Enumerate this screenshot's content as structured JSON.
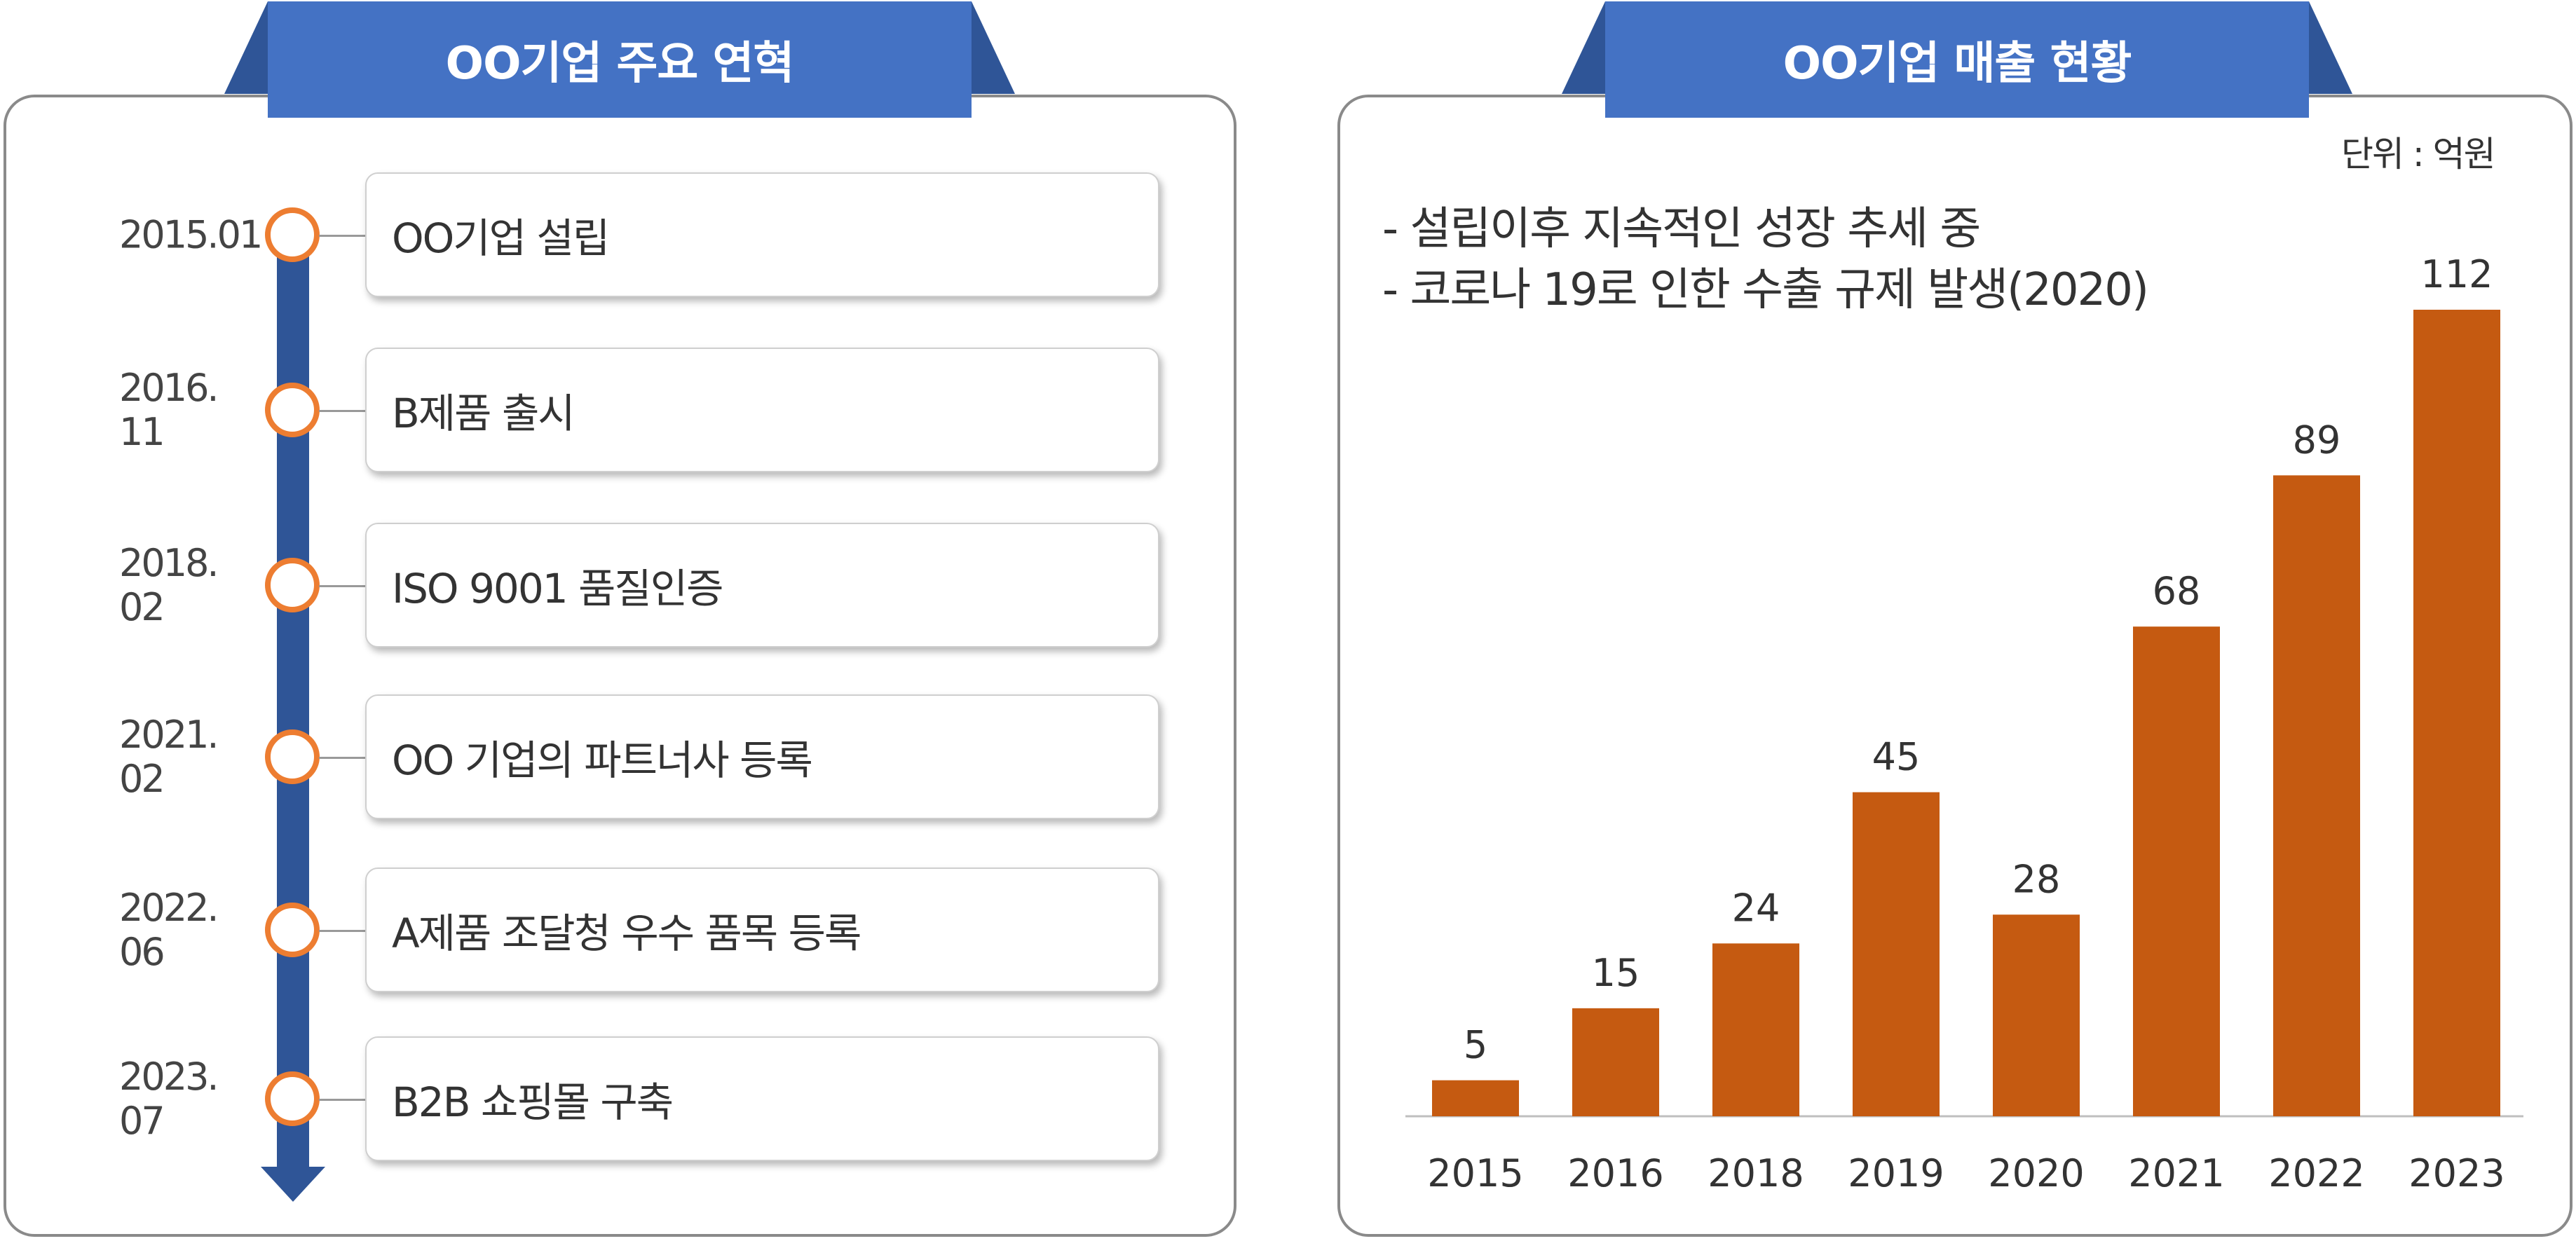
{
  "left": {
    "title": "OO기업 주요 연혁",
    "items": [
      {
        "date": "2015.01",
        "text": "OO기업 설립"
      },
      {
        "date": "2016. 11",
        "text": "B제품 출시"
      },
      {
        "date": "2018. 02",
        "text": "ISO 9001 품질인증"
      },
      {
        "date": "2021. 02",
        "text": "OO 기업의 파트너사 등록"
      },
      {
        "date": "2022. 06",
        "text": "A제품  조달청 우수 품목 등록"
      },
      {
        "date": "2023. 07",
        "text": "B2B 쇼핑몰 구축"
      }
    ]
  },
  "right": {
    "title": "OO기업 매출 현황",
    "unit": "단위 : 억원",
    "notes": [
      "- 설립이후 지속적인 성장 추세 중",
      "- 코로나 19로 인한 수출 규제 발생(2020)"
    ]
  },
  "colors": {
    "bar": "#c55a11",
    "tab": "#4472c4",
    "tab_dark": "#2f5597",
    "timeline": "#2f5597",
    "circle": "#ed7d31"
  },
  "chart_data": {
    "type": "bar",
    "categories": [
      "2015",
      "2016",
      "2018",
      "2019",
      "2020",
      "2021",
      "2022",
      "2023"
    ],
    "values": [
      5,
      15,
      24,
      45,
      28,
      68,
      89,
      112
    ],
    "title": "OO기업 매출 현황",
    "unit": "단위 : 억원",
    "ylim": [
      0,
      112
    ],
    "grid": false,
    "legend": "none",
    "data_labels": true
  }
}
